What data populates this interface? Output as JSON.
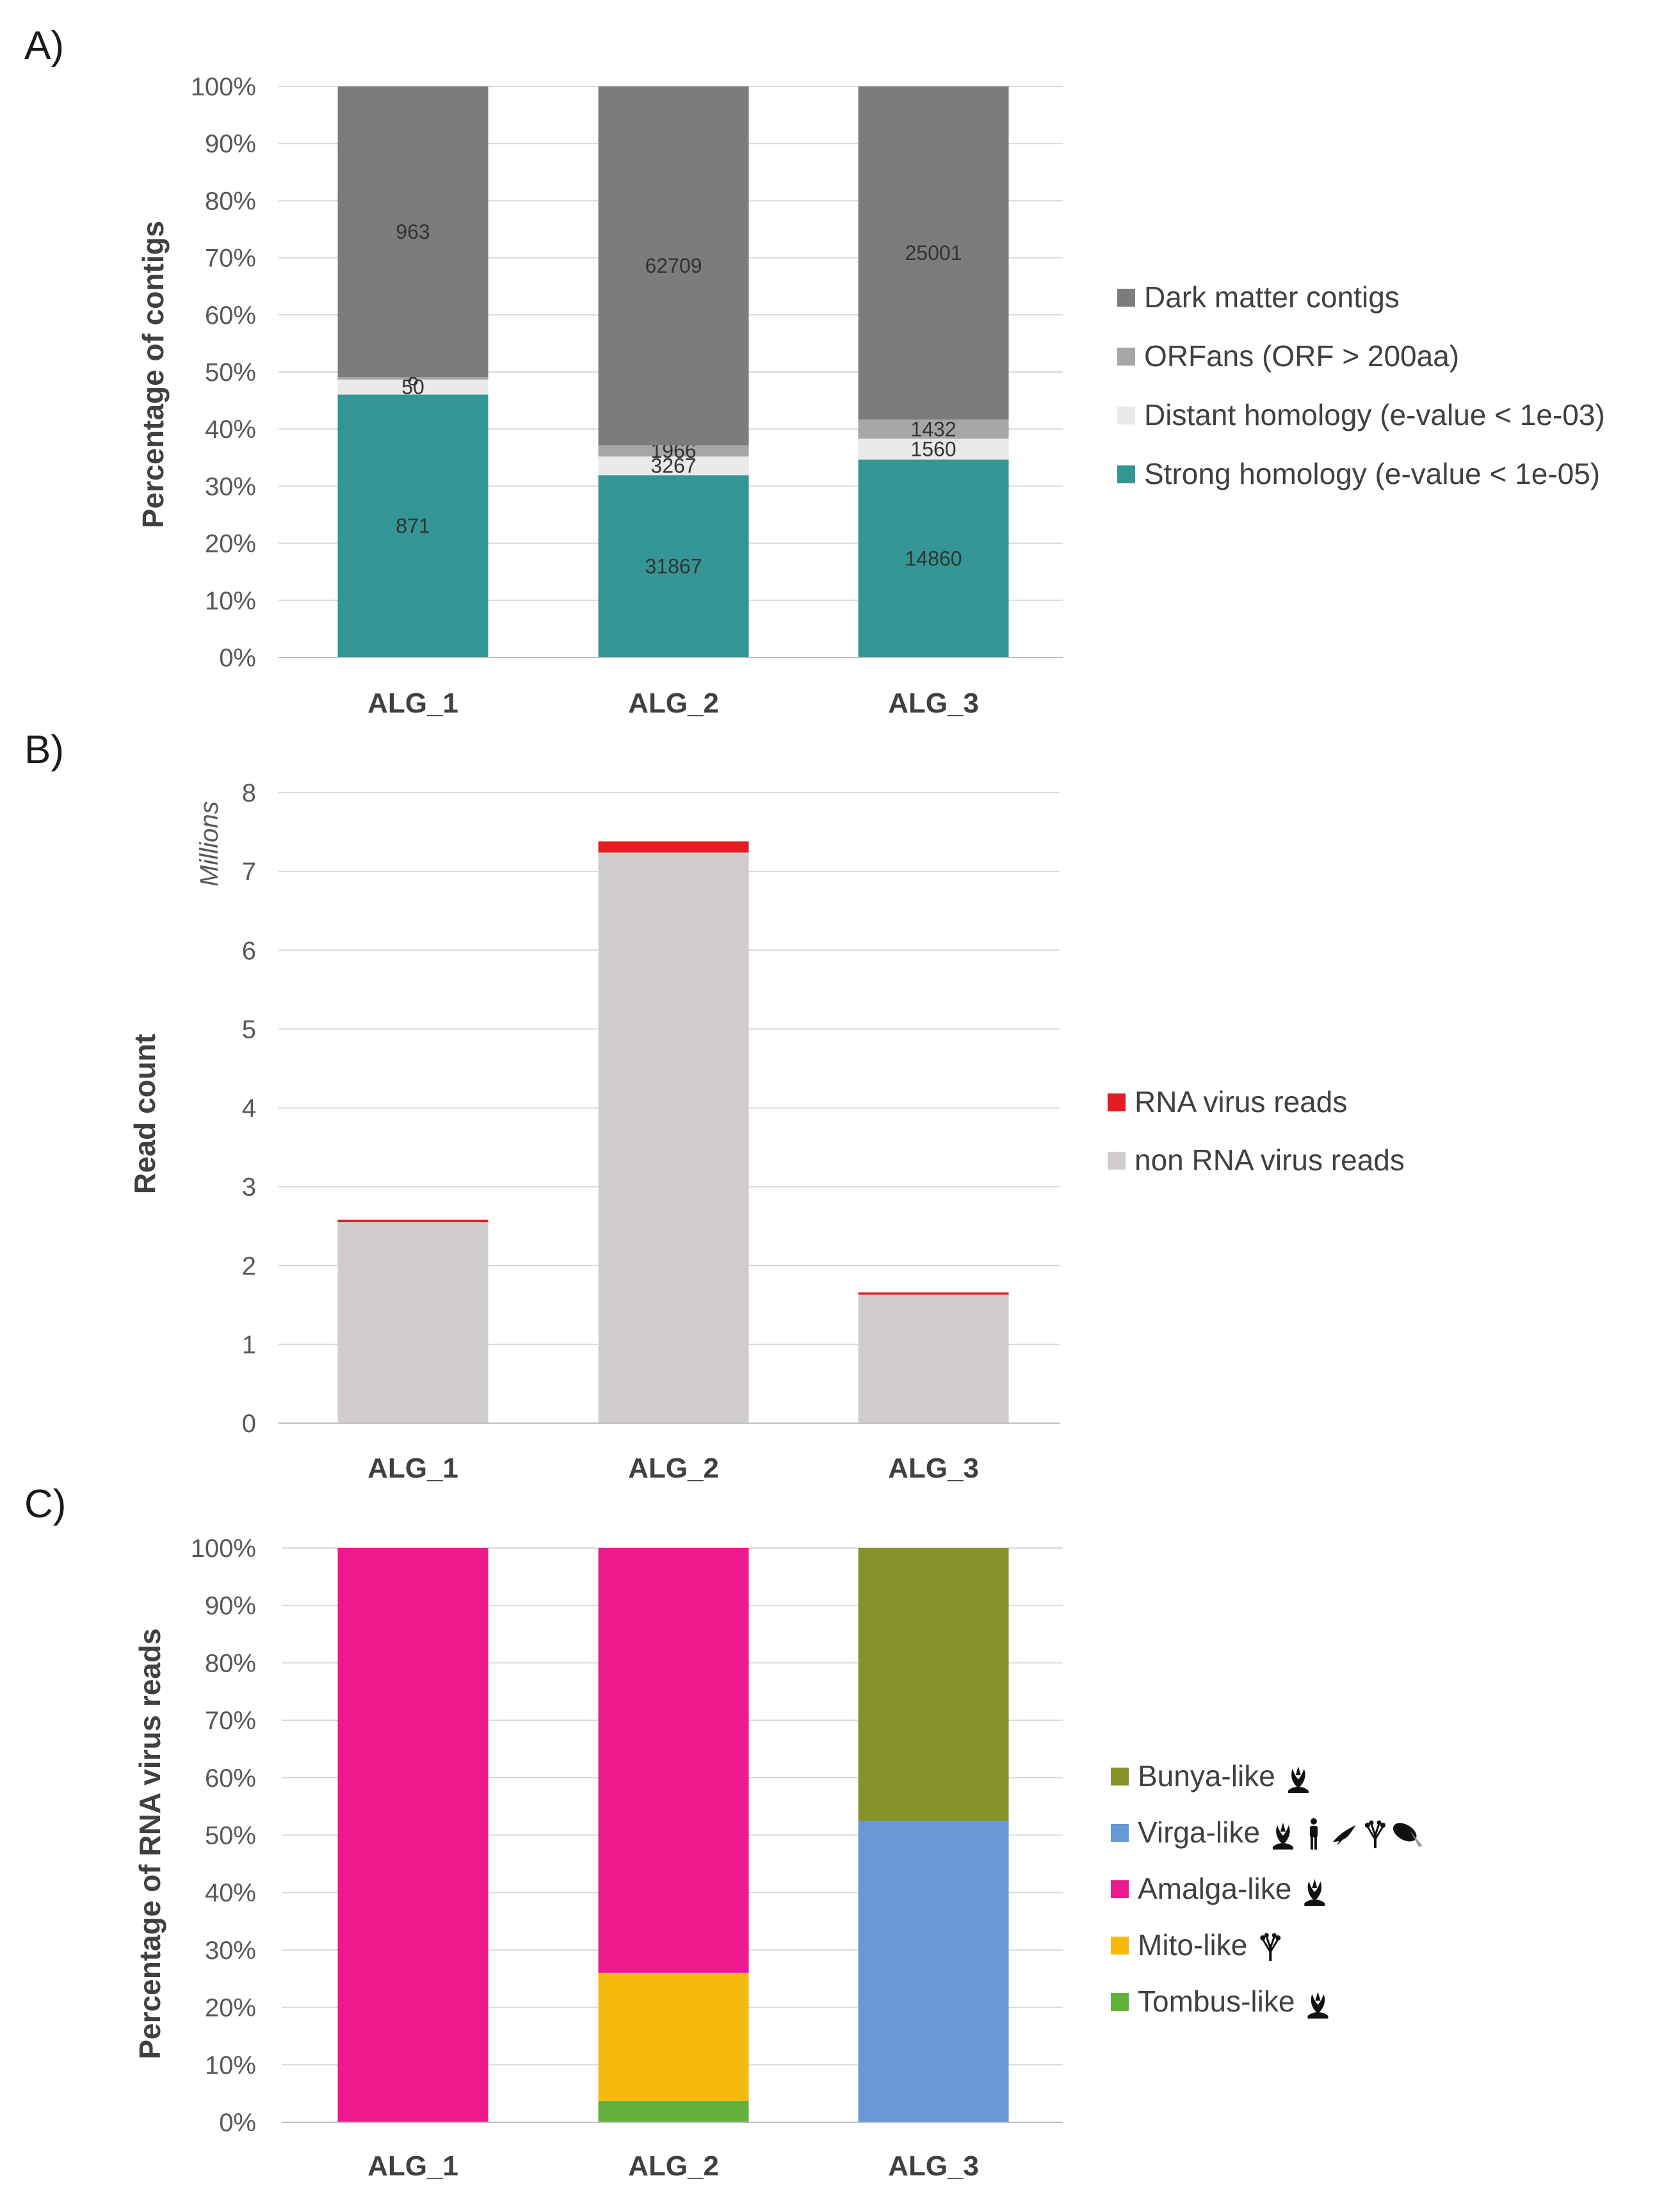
{
  "panels": {
    "a": "A)",
    "b": "B)",
    "c": "C)"
  },
  "chart_data": [
    {
      "type": "bar",
      "stacked": true,
      "normalized": true,
      "ylabel": "Percentage of contigs",
      "xlabel": "",
      "ylim": [
        0,
        100
      ],
      "yticks": [
        "0%",
        "10%",
        "20%",
        "30%",
        "40%",
        "50%",
        "60%",
        "70%",
        "80%",
        "90%",
        "100%"
      ],
      "grid": true,
      "legend_position": "right",
      "categories": [
        "ALG_1",
        "ALG_2",
        "ALG_3"
      ],
      "series": [
        {
          "name": "Strong homology (e-value < 1e-05)",
          "color": "#339694",
          "values": [
            871,
            31867,
            14860
          ],
          "labels": [
            "871",
            "31867",
            "14860"
          ]
        },
        {
          "name": "Distant homology (e-value < 1e-03)",
          "color": "#eaeaea",
          "values": [
            50,
            3267,
            1560
          ],
          "labels": [
            "50",
            "3267",
            "1560"
          ]
        },
        {
          "name": "ORFans (ORF > 200aa)",
          "color": "#a6a6a6",
          "values": [
            8,
            1966,
            1432
          ],
          "labels": [
            "8",
            "1966",
            "1432"
          ]
        },
        {
          "name": "Dark matter contigs",
          "color": "#7b7c7e",
          "values": [
            963,
            62709,
            25001
          ],
          "labels": [
            "963",
            "62709",
            "25001"
          ]
        }
      ]
    },
    {
      "type": "bar",
      "stacked": true,
      "normalized": false,
      "ylabel": "Read count",
      "units": "Millions",
      "xlabel": "",
      "ylim": [
        0,
        8
      ],
      "yticks": [
        "0",
        "1",
        "2",
        "3",
        "4",
        "5",
        "6",
        "7",
        "8"
      ],
      "grid": true,
      "legend_position": "right",
      "categories": [
        "ALG_1",
        "ALG_2",
        "ALG_3"
      ],
      "series": [
        {
          "name": "non RNA virus reads",
          "color": "#d1cdcd",
          "values": [
            2.55,
            7.24,
            1.63
          ]
        },
        {
          "name": "RNA virus reads",
          "color": "#e51c23",
          "values": [
            0.03,
            0.14,
            0.03
          ]
        }
      ]
    },
    {
      "type": "bar",
      "stacked": true,
      "normalized": true,
      "ylabel": "Percentage of RNA virus reads",
      "xlabel": "",
      "ylim": [
        0,
        100
      ],
      "yticks": [
        "0%",
        "10%",
        "20%",
        "30%",
        "40%",
        "50%",
        "60%",
        "70%",
        "80%",
        "90%",
        "100%"
      ],
      "grid": true,
      "legend_position": "right",
      "categories": [
        "ALG_1",
        "ALG_2",
        "ALG_3"
      ],
      "series": [
        {
          "name": "Tombus-like",
          "color": "#62b13c",
          "values": [
            0,
            3.7,
            0
          ],
          "icons": [
            "plant-icon"
          ]
        },
        {
          "name": "Mito-like",
          "color": "#f6b90e",
          "values": [
            0,
            22.3,
            0
          ],
          "icons": [
            "fungus-icon"
          ]
        },
        {
          "name": "Amalga-like",
          "color": "#ec1a8d",
          "values": [
            100,
            74,
            0
          ],
          "icons": [
            "plant-icon"
          ]
        },
        {
          "name": "Virga-like",
          "color": "#6699d6",
          "values": [
            0,
            0,
            52.5
          ],
          "icons": [
            "plant-icon",
            "human-icon",
            "bird-icon",
            "fungus-icon",
            "insect-icon"
          ]
        },
        {
          "name": "Bunya-like",
          "color": "#87922a",
          "values": [
            0,
            0,
            47.5
          ],
          "icons": [
            "plant-icon"
          ]
        }
      ]
    }
  ]
}
